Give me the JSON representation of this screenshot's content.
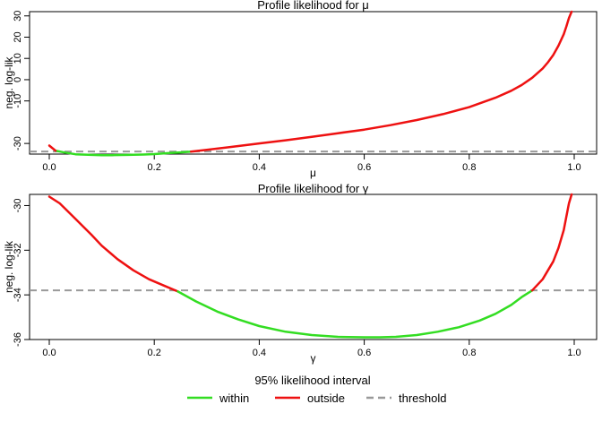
{
  "colors": {
    "within": "#33dd22",
    "outside": "#ee1111",
    "threshold": "#999999",
    "axis": "#000000"
  },
  "chart_data": [
    {
      "type": "line",
      "title": "Profile likelihood for  μ",
      "xlabel": "μ",
      "ylabel": "neg. log-lik",
      "xlim": [
        0,
        1
      ],
      "ylim": [
        -35,
        32
      ],
      "xticks": [
        "0.0",
        "0.2",
        "0.4",
        "0.6",
        "0.8",
        "1.0"
      ],
      "xtick_values": [
        0,
        0.2,
        0.4,
        0.6,
        0.8,
        1.0
      ],
      "yticks": [
        "-30",
        "-10",
        "0",
        "10",
        "20",
        "30"
      ],
      "ytick_values": [
        -30,
        -10,
        0,
        10,
        20,
        30
      ],
      "threshold": -33.8,
      "series": [
        {
          "name": "within",
          "x": [
            0.012,
            0.03,
            0.05,
            0.08,
            0.1,
            0.12,
            0.15,
            0.18,
            0.2,
            0.23,
            0.25,
            0.27
          ],
          "y": [
            -33.4,
            -34.3,
            -35.1,
            -35.4,
            -35.5,
            -35.5,
            -35.4,
            -35.2,
            -35.0,
            -34.5,
            -34.2,
            -33.8
          ]
        },
        {
          "name": "outside",
          "x": [
            0.0,
            0.005,
            0.012
          ],
          "y": [
            -31.0,
            -32.0,
            -33.4
          ]
        },
        {
          "name": "outside",
          "x": [
            0.27,
            0.3,
            0.35,
            0.4,
            0.45,
            0.5,
            0.55,
            0.6,
            0.65,
            0.7,
            0.75,
            0.8,
            0.85,
            0.88,
            0.9,
            0.92,
            0.94,
            0.95,
            0.96,
            0.97,
            0.98,
            0.985,
            0.99,
            0.995
          ],
          "y": [
            -33.8,
            -33.0,
            -31.5,
            -30.0,
            -28.5,
            -26.9,
            -25.2,
            -23.5,
            -21.4,
            -19.0,
            -16.2,
            -12.9,
            -8.5,
            -5.2,
            -2.5,
            0.9,
            5.3,
            8.2,
            11.6,
            16.0,
            21.4,
            25.0,
            29.0,
            32.0
          ]
        }
      ]
    },
    {
      "type": "line",
      "title": "Profile likelihood for  γ",
      "xlabel": "γ",
      "ylabel": "neg. log-lik",
      "xlim": [
        0,
        1
      ],
      "ylim": [
        -36,
        -29.5
      ],
      "xticks": [
        "0.0",
        "0.2",
        "0.4",
        "0.6",
        "0.8",
        "1.0"
      ],
      "xtick_values": [
        0,
        0.2,
        0.4,
        0.6,
        0.8,
        1.0
      ],
      "yticks": [
        "-36",
        "-34",
        "-32",
        "-30"
      ],
      "ytick_values": [
        -36,
        -34,
        -32,
        -30
      ],
      "threshold": -33.8,
      "series": [
        {
          "name": "outside",
          "x": [
            0.0,
            0.02,
            0.05,
            0.08,
            0.1,
            0.13,
            0.16,
            0.19,
            0.22,
            0.245
          ],
          "y": [
            -29.6,
            -29.9,
            -30.6,
            -31.3,
            -31.8,
            -32.4,
            -32.9,
            -33.3,
            -33.6,
            -33.85
          ]
        },
        {
          "name": "within",
          "x": [
            0.245,
            0.28,
            0.32,
            0.36,
            0.4,
            0.45,
            0.5,
            0.55,
            0.6,
            0.63,
            0.66,
            0.7,
            0.74,
            0.78,
            0.82,
            0.85,
            0.88,
            0.9,
            0.92
          ],
          "y": [
            -33.85,
            -34.3,
            -34.75,
            -35.1,
            -35.4,
            -35.65,
            -35.8,
            -35.88,
            -35.9,
            -35.9,
            -35.88,
            -35.8,
            -35.65,
            -35.45,
            -35.15,
            -34.85,
            -34.45,
            -34.1,
            -33.8
          ]
        },
        {
          "name": "outside",
          "x": [
            0.92,
            0.94,
            0.96,
            0.97,
            0.98,
            0.985,
            0.99,
            0.995
          ],
          "y": [
            -33.8,
            -33.3,
            -32.5,
            -31.9,
            -31.1,
            -30.5,
            -29.9,
            -29.5
          ]
        }
      ]
    }
  ],
  "legend": {
    "title": "95% likelihood interval",
    "items": [
      {
        "label": "within",
        "key": "within"
      },
      {
        "label": "outside",
        "key": "outside"
      },
      {
        "label": "threshold",
        "key": "threshold"
      }
    ]
  }
}
